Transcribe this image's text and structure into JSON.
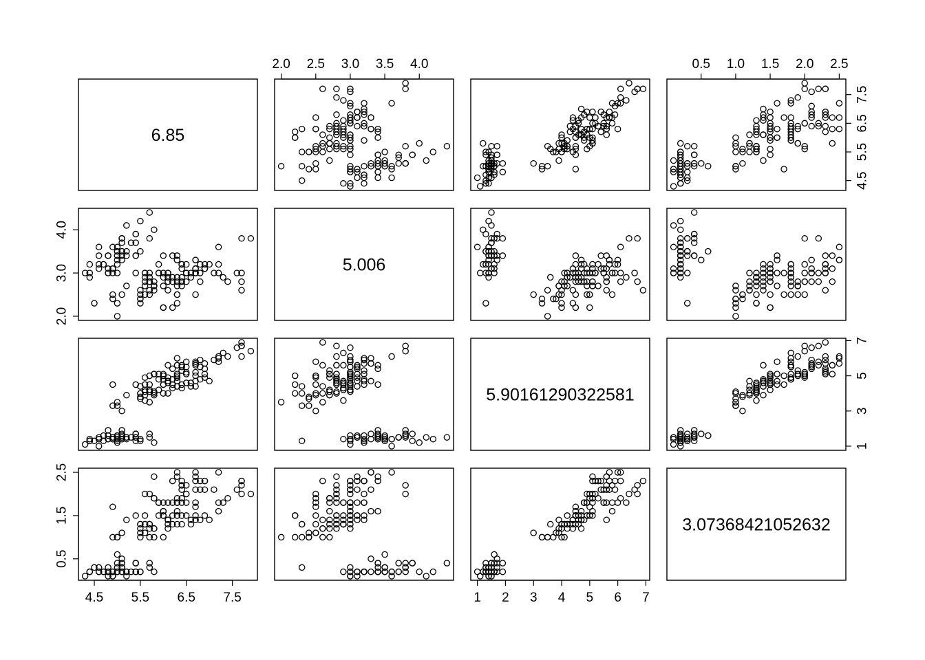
{
  "chart_data": {
    "type": "scatter",
    "kind": "scatterplot-matrix",
    "title": "",
    "grid": false,
    "legend": "none",
    "variables": [
      {
        "range": [
          4.3,
          7.9
        ],
        "diagonal_label": "6.85",
        "ticks": [
          4.5,
          5.5,
          6.5,
          7.5
        ],
        "tick_labels": [
          "4.5",
          "5.5",
          "6.5",
          "7.5"
        ]
      },
      {
        "range": [
          2.0,
          4.4
        ],
        "diagonal_label": "5.006",
        "ticks": [
          2.0,
          2.5,
          3.0,
          3.5,
          4.0
        ],
        "tick_labels": [
          "2.0",
          "2.5",
          "3.0",
          "3.5",
          "4.0"
        ],
        "left_ticks": [
          2.0,
          3.0,
          4.0
        ],
        "left_tick_labels": [
          "2.0",
          "3.0",
          "4.0"
        ]
      },
      {
        "range": [
          1.0,
          6.9
        ],
        "diagonal_label": "5.90161290322581",
        "ticks": [
          1,
          2,
          3,
          4,
          5,
          6,
          7
        ],
        "tick_labels": [
          "1",
          "2",
          "3",
          "4",
          "5",
          "6",
          "7"
        ],
        "right_ticks": [
          1,
          3,
          5,
          7
        ],
        "right_tick_labels": [
          "1",
          "3",
          "5",
          "7"
        ]
      },
      {
        "range": [
          0.1,
          2.5
        ],
        "diagonal_label": "3.07368421052632",
        "ticks": [
          0.5,
          1.0,
          1.5,
          2.0,
          2.5
        ],
        "tick_labels": [
          "0.5",
          "1.0",
          "1.5",
          "2.0",
          "2.5"
        ],
        "left_ticks": [
          0.5,
          1.5,
          2.5
        ],
        "left_tick_labels": [
          "0.5",
          "1.5",
          "2.5"
        ]
      }
    ],
    "observations": [
      [
        5.1,
        3.5,
        1.4,
        0.2
      ],
      [
        4.9,
        3.0,
        1.4,
        0.2
      ],
      [
        4.7,
        3.2,
        1.3,
        0.2
      ],
      [
        4.6,
        3.1,
        1.5,
        0.2
      ],
      [
        5.0,
        3.6,
        1.4,
        0.2
      ],
      [
        5.4,
        3.9,
        1.7,
        0.4
      ],
      [
        4.6,
        3.4,
        1.4,
        0.3
      ],
      [
        5.0,
        3.4,
        1.5,
        0.2
      ],
      [
        4.4,
        2.9,
        1.4,
        0.2
      ],
      [
        4.9,
        3.1,
        1.5,
        0.1
      ],
      [
        5.4,
        3.7,
        1.5,
        0.2
      ],
      [
        4.8,
        3.4,
        1.6,
        0.2
      ],
      [
        4.8,
        3.0,
        1.4,
        0.1
      ],
      [
        4.3,
        3.0,
        1.1,
        0.1
      ],
      [
        5.8,
        4.0,
        1.2,
        0.2
      ],
      [
        5.7,
        4.4,
        1.5,
        0.4
      ],
      [
        5.4,
        3.9,
        1.3,
        0.4
      ],
      [
        5.1,
        3.5,
        1.4,
        0.3
      ],
      [
        5.7,
        3.8,
        1.7,
        0.3
      ],
      [
        5.1,
        3.8,
        1.5,
        0.3
      ],
      [
        5.4,
        3.4,
        1.7,
        0.2
      ],
      [
        5.1,
        3.7,
        1.5,
        0.4
      ],
      [
        4.6,
        3.6,
        1.0,
        0.2
      ],
      [
        5.1,
        3.3,
        1.7,
        0.5
      ],
      [
        4.8,
        3.4,
        1.9,
        0.2
      ],
      [
        5.0,
        3.0,
        1.6,
        0.2
      ],
      [
        5.0,
        3.4,
        1.6,
        0.4
      ],
      [
        5.2,
        3.5,
        1.5,
        0.2
      ],
      [
        5.2,
        3.4,
        1.4,
        0.2
      ],
      [
        4.7,
        3.2,
        1.6,
        0.2
      ],
      [
        4.8,
        3.1,
        1.6,
        0.2
      ],
      [
        5.4,
        3.4,
        1.5,
        0.4
      ],
      [
        5.2,
        4.1,
        1.5,
        0.1
      ],
      [
        5.5,
        4.2,
        1.4,
        0.2
      ],
      [
        4.9,
        3.1,
        1.5,
        0.2
      ],
      [
        5.0,
        3.2,
        1.2,
        0.2
      ],
      [
        5.5,
        3.5,
        1.3,
        0.2
      ],
      [
        4.9,
        3.6,
        1.4,
        0.1
      ],
      [
        4.4,
        3.0,
        1.3,
        0.2
      ],
      [
        5.1,
        3.4,
        1.5,
        0.2
      ],
      [
        5.0,
        3.5,
        1.3,
        0.3
      ],
      [
        4.5,
        2.3,
        1.3,
        0.3
      ],
      [
        4.4,
        3.2,
        1.3,
        0.2
      ],
      [
        5.0,
        3.5,
        1.6,
        0.6
      ],
      [
        5.1,
        3.8,
        1.9,
        0.4
      ],
      [
        4.8,
        3.0,
        1.4,
        0.3
      ],
      [
        5.1,
        3.8,
        1.6,
        0.2
      ],
      [
        4.6,
        3.2,
        1.4,
        0.2
      ],
      [
        5.3,
        3.7,
        1.5,
        0.2
      ],
      [
        5.0,
        3.3,
        1.4,
        0.2
      ],
      [
        7.0,
        3.2,
        4.7,
        1.4
      ],
      [
        6.4,
        3.2,
        4.5,
        1.5
      ],
      [
        6.9,
        3.1,
        4.9,
        1.5
      ],
      [
        5.5,
        2.3,
        4.0,
        1.3
      ],
      [
        6.5,
        2.8,
        4.6,
        1.5
      ],
      [
        5.7,
        2.8,
        4.5,
        1.3
      ],
      [
        6.3,
        3.3,
        4.7,
        1.6
      ],
      [
        4.9,
        2.4,
        3.3,
        1.0
      ],
      [
        6.6,
        2.9,
        4.6,
        1.3
      ],
      [
        5.2,
        2.7,
        3.9,
        1.4
      ],
      [
        5.0,
        2.0,
        3.5,
        1.0
      ],
      [
        5.9,
        3.0,
        4.2,
        1.5
      ],
      [
        6.0,
        2.2,
        4.0,
        1.0
      ],
      [
        6.1,
        2.9,
        4.7,
        1.4
      ],
      [
        5.6,
        2.9,
        3.6,
        1.3
      ],
      [
        6.7,
        3.1,
        4.4,
        1.4
      ],
      [
        5.6,
        3.0,
        4.5,
        1.5
      ],
      [
        5.8,
        2.7,
        4.1,
        1.0
      ],
      [
        6.2,
        2.2,
        4.5,
        1.5
      ],
      [
        5.6,
        2.5,
        3.9,
        1.1
      ],
      [
        5.9,
        3.2,
        4.8,
        1.8
      ],
      [
        6.1,
        2.8,
        4.0,
        1.3
      ],
      [
        6.3,
        2.5,
        4.9,
        1.5
      ],
      [
        6.1,
        2.8,
        4.7,
        1.2
      ],
      [
        6.4,
        2.9,
        4.3,
        1.3
      ],
      [
        6.6,
        3.0,
        4.4,
        1.4
      ],
      [
        6.8,
        2.8,
        4.8,
        1.4
      ],
      [
        6.7,
        3.0,
        5.0,
        1.7
      ],
      [
        6.0,
        2.9,
        4.5,
        1.5
      ],
      [
        5.7,
        2.6,
        3.5,
        1.0
      ],
      [
        5.5,
        2.4,
        3.8,
        1.1
      ],
      [
        5.5,
        2.4,
        3.7,
        1.0
      ],
      [
        5.8,
        2.7,
        3.9,
        1.2
      ],
      [
        6.0,
        2.7,
        5.1,
        1.6
      ],
      [
        5.4,
        3.0,
        4.5,
        1.5
      ],
      [
        6.0,
        3.4,
        4.5,
        1.6
      ],
      [
        6.7,
        3.1,
        4.7,
        1.5
      ],
      [
        6.3,
        2.3,
        4.4,
        1.3
      ],
      [
        5.6,
        3.0,
        4.1,
        1.3
      ],
      [
        5.5,
        2.5,
        4.0,
        1.3
      ],
      [
        5.5,
        2.6,
        4.4,
        1.2
      ],
      [
        6.1,
        3.0,
        4.6,
        1.4
      ],
      [
        5.8,
        2.6,
        4.0,
        1.2
      ],
      [
        5.0,
        2.3,
        3.3,
        1.0
      ],
      [
        5.6,
        2.7,
        4.2,
        1.3
      ],
      [
        5.7,
        3.0,
        4.2,
        1.2
      ],
      [
        5.7,
        2.9,
        4.2,
        1.3
      ],
      [
        6.2,
        2.9,
        4.3,
        1.3
      ],
      [
        5.1,
        2.5,
        3.0,
        1.1
      ],
      [
        5.7,
        2.8,
        4.1,
        1.3
      ],
      [
        6.3,
        3.3,
        6.0,
        2.5
      ],
      [
        5.8,
        2.7,
        5.1,
        1.9
      ],
      [
        7.1,
        3.0,
        5.9,
        2.1
      ],
      [
        6.3,
        2.9,
        5.6,
        1.8
      ],
      [
        6.5,
        3.0,
        5.8,
        2.2
      ],
      [
        7.6,
        3.0,
        6.6,
        2.1
      ],
      [
        4.9,
        2.5,
        4.5,
        1.7
      ],
      [
        7.3,
        2.9,
        6.3,
        1.8
      ],
      [
        6.7,
        2.5,
        5.8,
        1.8
      ],
      [
        7.2,
        3.6,
        6.1,
        2.5
      ],
      [
        6.5,
        3.2,
        5.1,
        2.0
      ],
      [
        6.4,
        2.7,
        5.3,
        1.9
      ],
      [
        6.8,
        3.0,
        5.5,
        2.1
      ],
      [
        5.7,
        2.5,
        5.0,
        2.0
      ],
      [
        5.8,
        2.8,
        5.1,
        2.4
      ],
      [
        6.4,
        3.2,
        5.3,
        2.3
      ],
      [
        6.5,
        3.0,
        5.5,
        1.8
      ],
      [
        7.7,
        3.8,
        6.7,
        2.2
      ],
      [
        7.7,
        2.6,
        6.9,
        2.3
      ],
      [
        6.0,
        2.2,
        5.0,
        1.5
      ],
      [
        6.9,
        3.2,
        5.7,
        2.3
      ],
      [
        5.6,
        2.8,
        4.9,
        2.0
      ],
      [
        7.7,
        2.8,
        6.7,
        2.0
      ],
      [
        6.3,
        2.7,
        4.9,
        1.8
      ],
      [
        6.7,
        3.3,
        5.7,
        2.1
      ],
      [
        7.2,
        3.2,
        6.0,
        1.8
      ],
      [
        6.2,
        2.8,
        4.8,
        1.8
      ],
      [
        6.1,
        3.0,
        4.9,
        1.8
      ],
      [
        6.4,
        2.8,
        5.6,
        2.1
      ],
      [
        7.2,
        3.0,
        5.8,
        1.6
      ],
      [
        7.4,
        2.8,
        6.1,
        1.9
      ],
      [
        7.9,
        3.8,
        6.4,
        2.0
      ],
      [
        6.4,
        2.8,
        5.6,
        2.2
      ],
      [
        6.3,
        2.8,
        5.1,
        1.5
      ],
      [
        6.1,
        2.6,
        5.6,
        1.4
      ],
      [
        7.7,
        3.0,
        6.1,
        2.3
      ],
      [
        6.3,
        3.4,
        5.6,
        2.4
      ],
      [
        6.4,
        3.1,
        5.5,
        1.8
      ],
      [
        6.0,
        3.0,
        4.8,
        1.8
      ],
      [
        6.9,
        3.1,
        5.4,
        2.1
      ],
      [
        6.7,
        3.1,
        5.6,
        2.4
      ],
      [
        6.9,
        3.1,
        5.1,
        2.3
      ],
      [
        5.8,
        2.7,
        5.1,
        1.9
      ],
      [
        6.8,
        3.2,
        5.9,
        2.3
      ],
      [
        6.7,
        3.3,
        5.7,
        2.5
      ],
      [
        6.7,
        3.0,
        5.2,
        2.3
      ],
      [
        6.3,
        2.5,
        5.0,
        1.9
      ],
      [
        6.5,
        3.0,
        5.2,
        2.0
      ],
      [
        6.2,
        3.4,
        5.4,
        2.3
      ],
      [
        5.9,
        3.0,
        5.1,
        1.8
      ]
    ]
  }
}
